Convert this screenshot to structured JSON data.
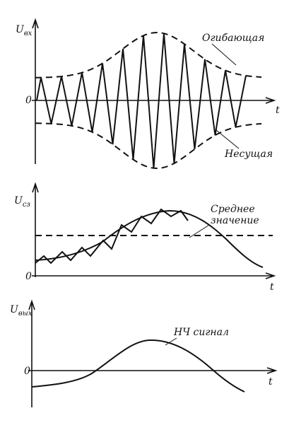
{
  "panels": [
    {
      "y_label": {
        "main": "U",
        "sub": "вх"
      },
      "origin": "0",
      "x_label": "t",
      "annotations": [
        "Огибающая",
        "Несущая"
      ]
    },
    {
      "y_label": {
        "main": "U",
        "sub": "cз"
      },
      "origin": "0",
      "x_label": "t",
      "annotations": [
        "Среднее",
        "значение"
      ]
    },
    {
      "y_label": {
        "main": "U",
        "sub": "вых"
      },
      "origin": "0",
      "x_label": "t",
      "annotations": [
        "НЧ сигнал"
      ]
    }
  ]
}
